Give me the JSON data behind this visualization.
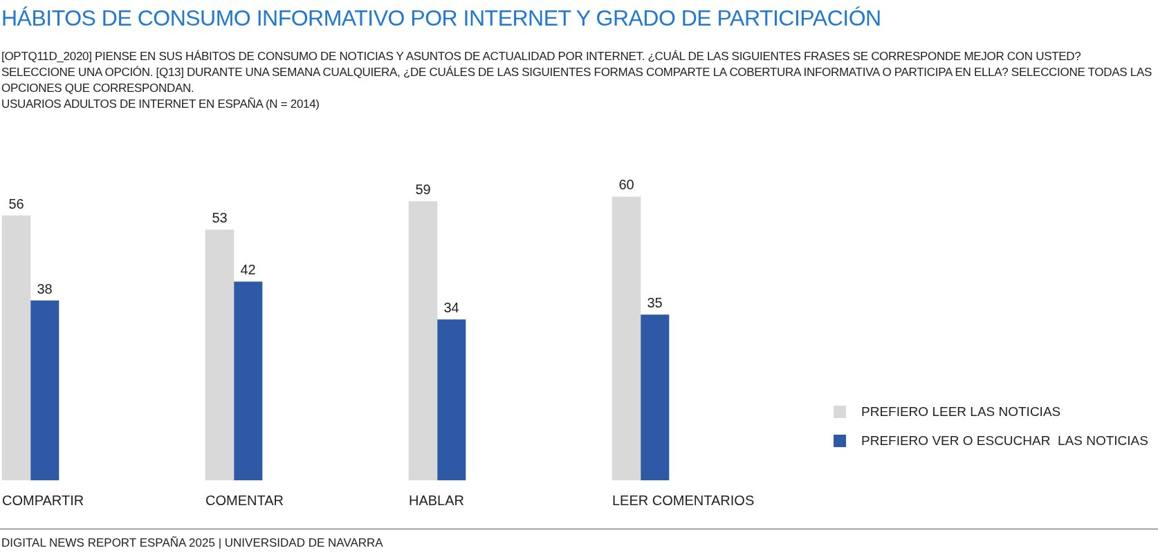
{
  "chart_data": {
    "type": "bar",
    "title": "HÁBITOS DE CONSUMO INFORMATIVO POR INTERNET Y GRADO DE PARTICIPACIÓN",
    "subtitle": "[OPTQ11D_2020] PIENSE EN SUS HÁBITOS DE CONSUMO DE NOTICIAS Y ASUNTOS DE ACTUALIDAD POR INTERNET. ¿CUÁL DE LAS SIGUIENTES FRASES SE CORRESPONDE MEJOR CON USTED? SELECCIONE UNA OPCIÓN. [Q13] DURANTE UNA SEMANA CUALQUIERA, ¿DE CUÁLES DE LAS SIGUIENTES FORMAS COMPARTE LA COBERTURA INFORMATIVA O PARTICIPA EN ELLA? SELECCIONE TODAS LAS OPCIONES QUE CORRESPONDAN.\nUSUARIOS ADULTOS DE INTERNET EN ESPAÑA (N = 2014)",
    "categories": [
      "COMPARTIR",
      "COMENTAR",
      "HABLAR",
      "LEER COMENTARIOS"
    ],
    "series": [
      {
        "name": "PREFIERO LEER LAS NOTICIAS",
        "color": "#d9d9d9",
        "values": [
          56,
          53,
          59,
          60
        ]
      },
      {
        "name": "PREFIERO VER O ESCUCHAR  LAS NOTICIAS",
        "color": "#2e59a6",
        "values": [
          38,
          42,
          34,
          35
        ]
      }
    ],
    "data_labels": true,
    "legend": "bottom right",
    "annotations": [
      "DIGITAL NEWS REPORT ESPAÑA 2025 | UNIVERSIDAD DE NAVARRA"
    ]
  }
}
